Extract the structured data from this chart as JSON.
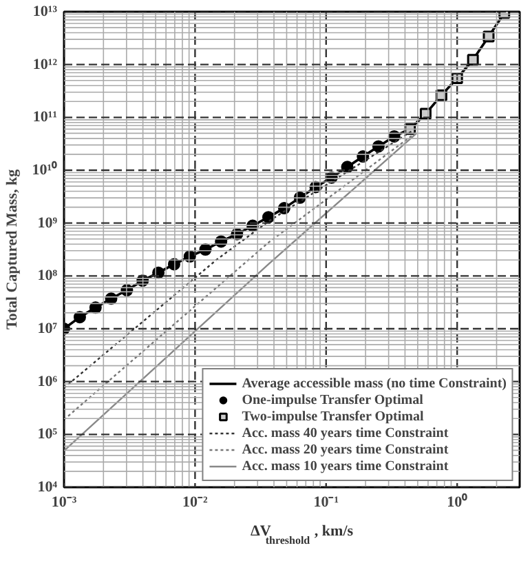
{
  "chart_data": {
    "type": "line",
    "xlabel": "ΔV$_{threshold}$, km/s",
    "ylabel": "Total Captured Mass, kg",
    "log": "xy",
    "grid": true,
    "legend": "bottom right",
    "xlim": [
      0.001,
      3
    ],
    "ylim": [
      10000,
      10000000000000.0
    ],
    "xticks": [
      {
        "value": 0.001,
        "label": "10⁻³"
      },
      {
        "value": 0.01,
        "label": "10⁻²"
      },
      {
        "value": 0.1,
        "label": "10⁻¹"
      },
      {
        "value": 1,
        "label": "10⁰"
      }
    ],
    "yticks": [
      {
        "value": 10000,
        "label": "10⁴"
      },
      {
        "value": 100000,
        "label": "10⁵"
      },
      {
        "value": 1000000,
        "label": "10⁶"
      },
      {
        "value": 10000000,
        "label": "10⁷"
      },
      {
        "value": 100000000,
        "label": "10⁸"
      },
      {
        "value": 1000000000,
        "label": "10⁹"
      },
      {
        "value": 10000000000,
        "label": "10¹⁰"
      },
      {
        "value": 100000000000,
        "label": "10¹¹"
      },
      {
        "value": 1000000000000,
        "label": "10¹²"
      },
      {
        "value": 10000000000000,
        "label": "10¹³"
      }
    ],
    "series": [
      {
        "name": "Average accessible mass (no time Constraint)",
        "color": "#000000",
        "line_style": "solid",
        "x": [
          0.001,
          0.00132,
          0.00174,
          0.00229,
          0.00302,
          0.00398,
          0.00525,
          0.00692,
          0.00912,
          0.012,
          0.0158,
          0.0209,
          0.0275,
          0.0363,
          0.0479,
          0.0631,
          0.0832,
          0.11,
          0.145,
          0.191,
          0.251,
          0.331,
          0.437,
          0.575,
          0.759,
          1.0,
          1.32,
          1.74,
          2.29
        ],
        "values": [
          10000000.0,
          16600000.0,
          25100000.0,
          37200000.0,
          53700000.0,
          81300000.0,
          115000000.0,
          166000000.0,
          234000000.0,
          316000000.0,
          447000000.0,
          617000000.0,
          891000000.0,
          1290000000.0,
          1910000000.0,
          3020000000.0,
          4790000000.0,
          7240000000.0,
          11500000000.0,
          18200000000.0,
          28200000000.0,
          43700000000.0,
          60300000000.0,
          117000000000.0,
          263000000000.0,
          550000000000.0,
          1230000000000.0,
          3390000000000.0,
          9500000000000.0
        ]
      },
      {
        "name": "One-impulse Transfer Optimal",
        "type": "scatter",
        "marker": "circle",
        "color": "#000000",
        "x": [
          0.001,
          0.00132,
          0.00174,
          0.00229,
          0.00302,
          0.00398,
          0.00525,
          0.00692,
          0.00912,
          0.012,
          0.0158,
          0.0209,
          0.0275,
          0.0363,
          0.0479,
          0.0631,
          0.0832,
          0.11,
          0.145,
          0.191,
          0.251,
          0.331
        ],
        "values": [
          10000000.0,
          16600000.0,
          25100000.0,
          37200000.0,
          53700000.0,
          81300000.0,
          115000000.0,
          166000000.0,
          234000000.0,
          316000000.0,
          447000000.0,
          617000000.0,
          891000000.0,
          1290000000.0,
          1910000000.0,
          3020000000.0,
          4790000000.0,
          7240000000.0,
          11500000000.0,
          18200000000.0,
          28200000000.0,
          43700000000.0
        ]
      },
      {
        "name": "Two-impulse Transfer Optimal",
        "type": "scatter",
        "marker": "square",
        "color": "#000000",
        "x": [
          0.437,
          0.575,
          0.759,
          1.0,
          1.32,
          1.74,
          2.29
        ],
        "values": [
          60300000000.0,
          117000000000.0,
          263000000000.0,
          550000000000.0,
          1230000000000.0,
          3390000000000.0,
          9500000000000.0
        ]
      },
      {
        "name": "Acc. mass 40 years time Constraint",
        "color": "#333333",
        "line_style": "dotted",
        "x": [
          0.001,
          0.0145,
          0.0372,
          0.1,
          0.316,
          0.457
        ],
        "values": [
          760000.0,
          200000000.0,
          1120000000.0,
          5250000000.0,
          31600000000.0,
          56000000000.0
        ]
      },
      {
        "name": "Acc. mass 20 years time Constraint",
        "color": "#777777",
        "line_style": "dotted",
        "x": [
          0.001,
          0.0363,
          0.49
        ],
        "values": [
          190000.0,
          427000000.0,
          52500000000.0
        ]
      },
      {
        "name": "Acc. mass 10 years time Constraint",
        "color": "#888888",
        "line_style": "solid",
        "x": [
          0.001,
          0.0363,
          0.49
        ],
        "values": [
          49000.0,
          166000000.0,
          50000000000.0
        ]
      }
    ]
  }
}
